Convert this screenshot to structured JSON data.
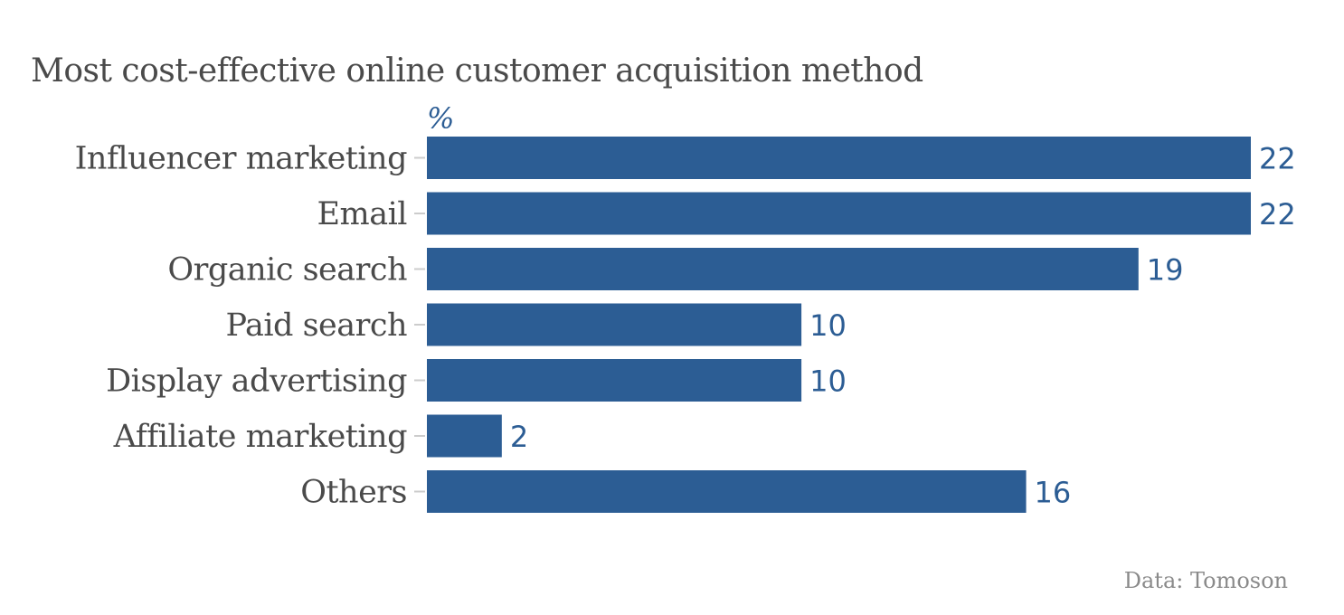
{
  "title": "Most cost-effective online customer acquisition method",
  "unit_label": "%",
  "source": "Data: Tomoson",
  "colors": {
    "bar": "#2c5d94",
    "value_label": "#2c5d94",
    "category_label": "#4a4a4a",
    "tick": "#cccccc",
    "title": "#4a4a4a",
    "source": "#8a8a8a"
  },
  "chart_data": {
    "type": "bar",
    "orientation": "horizontal",
    "title": "Most cost-effective online customer acquisition method",
    "xlabel": "%",
    "ylabel": "",
    "categories": [
      "Influencer marketing",
      "Email",
      "Organic search",
      "Paid search",
      "Display advertising",
      "Affiliate marketing",
      "Others"
    ],
    "values": [
      22,
      22,
      19,
      10,
      10,
      2,
      16
    ],
    "xlim": [
      0,
      22
    ],
    "grid": false,
    "legend": "none"
  }
}
